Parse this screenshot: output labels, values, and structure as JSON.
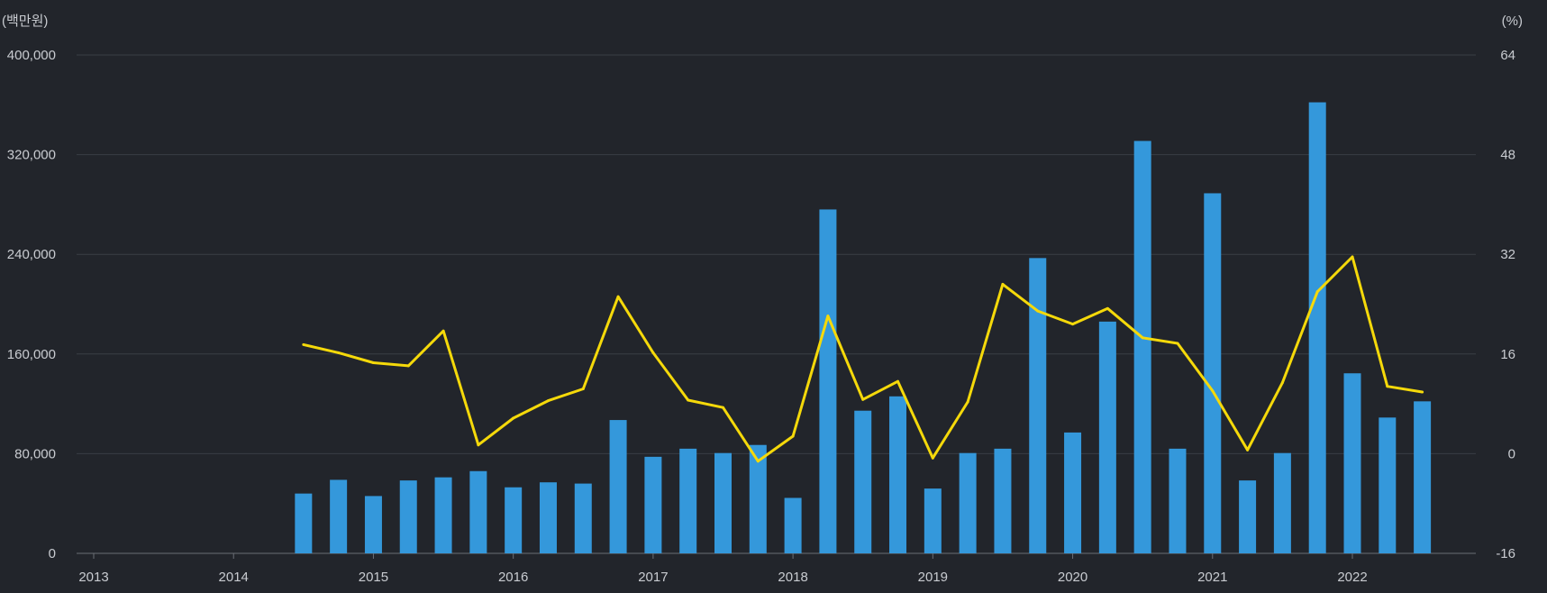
{
  "chart_data": {
    "type": "bar",
    "left_unit": "(백만원)",
    "right_unit": "(%)",
    "x_tick_labels": [
      "2013",
      "2014",
      "2015",
      "2016",
      "2017",
      "2018",
      "2019",
      "2020",
      "2021",
      "2022"
    ],
    "xlim": [
      2013,
      2023
    ],
    "y_left": {
      "ylim": [
        0,
        400000
      ],
      "ticks": [
        0,
        80000,
        160000,
        240000,
        320000,
        400000
      ],
      "tick_labels": [
        "0",
        "80,000",
        "160,000",
        "240,000",
        "320,000",
        "400,000"
      ]
    },
    "y_right": {
      "ylim": [
        -16,
        64
      ],
      "ticks": [
        -16,
        0,
        16,
        32,
        48,
        64
      ],
      "tick_labels": [
        "-16",
        "0",
        "16",
        "32",
        "48",
        "64"
      ]
    },
    "grid": true,
    "bar_color": "#3498db",
    "line_color": "#f5d90a",
    "x": [
      2014.5,
      2014.75,
      2015.0,
      2015.25,
      2015.5,
      2015.75,
      2016.0,
      2016.25,
      2016.5,
      2016.75,
      2017.0,
      2017.25,
      2017.5,
      2017.75,
      2018.0,
      2018.25,
      2018.5,
      2018.75,
      2019.0,
      2019.25,
      2019.5,
      2019.75,
      2020.0,
      2020.25,
      2020.5,
      2020.75,
      2021.0,
      2021.25,
      2021.5,
      2021.75,
      2022.0,
      2022.25,
      2022.5
    ],
    "series": [
      {
        "kind": "bar",
        "axis": "left",
        "values": [
          48000,
          59000,
          46000,
          58500,
          61000,
          66000,
          53000,
          57000,
          56000,
          107000,
          77500,
          84000,
          80500,
          87000,
          44500,
          276000,
          114500,
          126000,
          52000,
          80500,
          84000,
          237000,
          97000,
          186000,
          331000,
          84000,
          289000,
          58500,
          80500,
          362000,
          144500,
          109000,
          122000
        ]
      },
      {
        "kind": "line",
        "axis": "right",
        "values": [
          17.5,
          16.2,
          14.6,
          14.1,
          19.7,
          1.4,
          5.7,
          8.5,
          10.4,
          25.2,
          16.2,
          8.6,
          7.4,
          -1.2,
          2.8,
          22.1,
          8.7,
          11.6,
          -0.7,
          8.3,
          27.2,
          22.9,
          20.8,
          23.3,
          18.6,
          17.7,
          10.1,
          0.6,
          11.4,
          26.0,
          31.6,
          10.8,
          9.9
        ]
      }
    ]
  }
}
